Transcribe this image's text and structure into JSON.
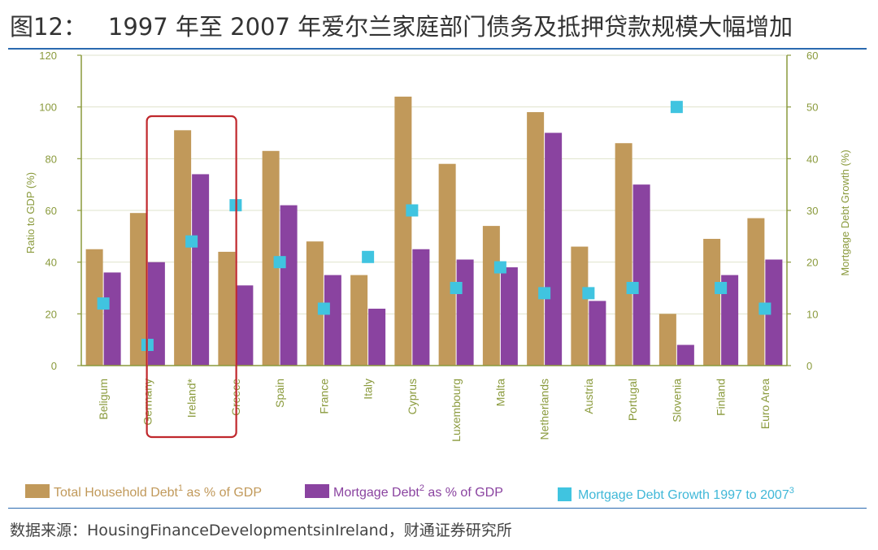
{
  "header": {
    "fig_num": "图12：",
    "title": "1997 年至 2007 年爱尔兰家庭部门债务及抵押贷款规模大幅增加"
  },
  "footer": {
    "source": "数据来源：HousingFinanceDevelopmentsinIreland，财通证券研究所"
  },
  "colors": {
    "total": "#c1995a",
    "mortgage": "#8a43a0",
    "growth": "#40c4e0",
    "axis": "#8a9a3c",
    "highlight": "#c0282d"
  },
  "chart_data": {
    "type": "bar",
    "title": "",
    "categories": [
      "Beligum",
      "Germany",
      "Ireland*",
      "Greece",
      "Spain",
      "France",
      "Italy",
      "Cyprus",
      "Luxembourg",
      "Malta",
      "Netherlands",
      "Austria",
      "Portugal",
      "Slovenia",
      "Finland",
      "Euro Area"
    ],
    "series": [
      {
        "name": "Total Household Debt as % of GDP",
        "axis": "left",
        "kind": "bar",
        "values": [
          45,
          59,
          91,
          44,
          83,
          48,
          35,
          104,
          78,
          54,
          98,
          46,
          86,
          20,
          49,
          57
        ]
      },
      {
        "name": "Mortgage Debt as % of GDP",
        "axis": "left",
        "kind": "bar",
        "values": [
          36,
          40,
          74,
          31,
          62,
          35,
          22,
          45,
          41,
          38,
          90,
          25,
          70,
          8,
          35,
          41
        ]
      },
      {
        "name": "Mortgage Debt Growth 1997 to 2007",
        "axis": "right",
        "kind": "marker",
        "values": [
          12,
          4,
          24,
          31,
          20,
          11,
          21,
          30,
          15,
          19,
          14,
          14,
          15,
          50,
          15,
          11
        ]
      }
    ],
    "ylabel": "Ratio to GDP (%)",
    "ylabel_right": "Mortgage Debt Growth (%)",
    "ylim": [
      0,
      120
    ],
    "ylim_right": [
      0,
      60
    ],
    "yticks": [
      0,
      20,
      40,
      60,
      80,
      100,
      120
    ],
    "yticks_right": [
      0,
      10,
      20,
      30,
      40,
      50,
      60
    ],
    "highlight_category": "Ireland*",
    "legend": {
      "total": {
        "text": "Total Household Debt",
        "sup": "1",
        "suffix": " as % of GDP"
      },
      "mortgage": {
        "text": "Mortgage Debt",
        "sup": "2",
        "suffix": " as % of GDP"
      },
      "growth": {
        "text": "Mortgage Debt Growth 1997 to 2007",
        "sup": "3"
      }
    }
  }
}
